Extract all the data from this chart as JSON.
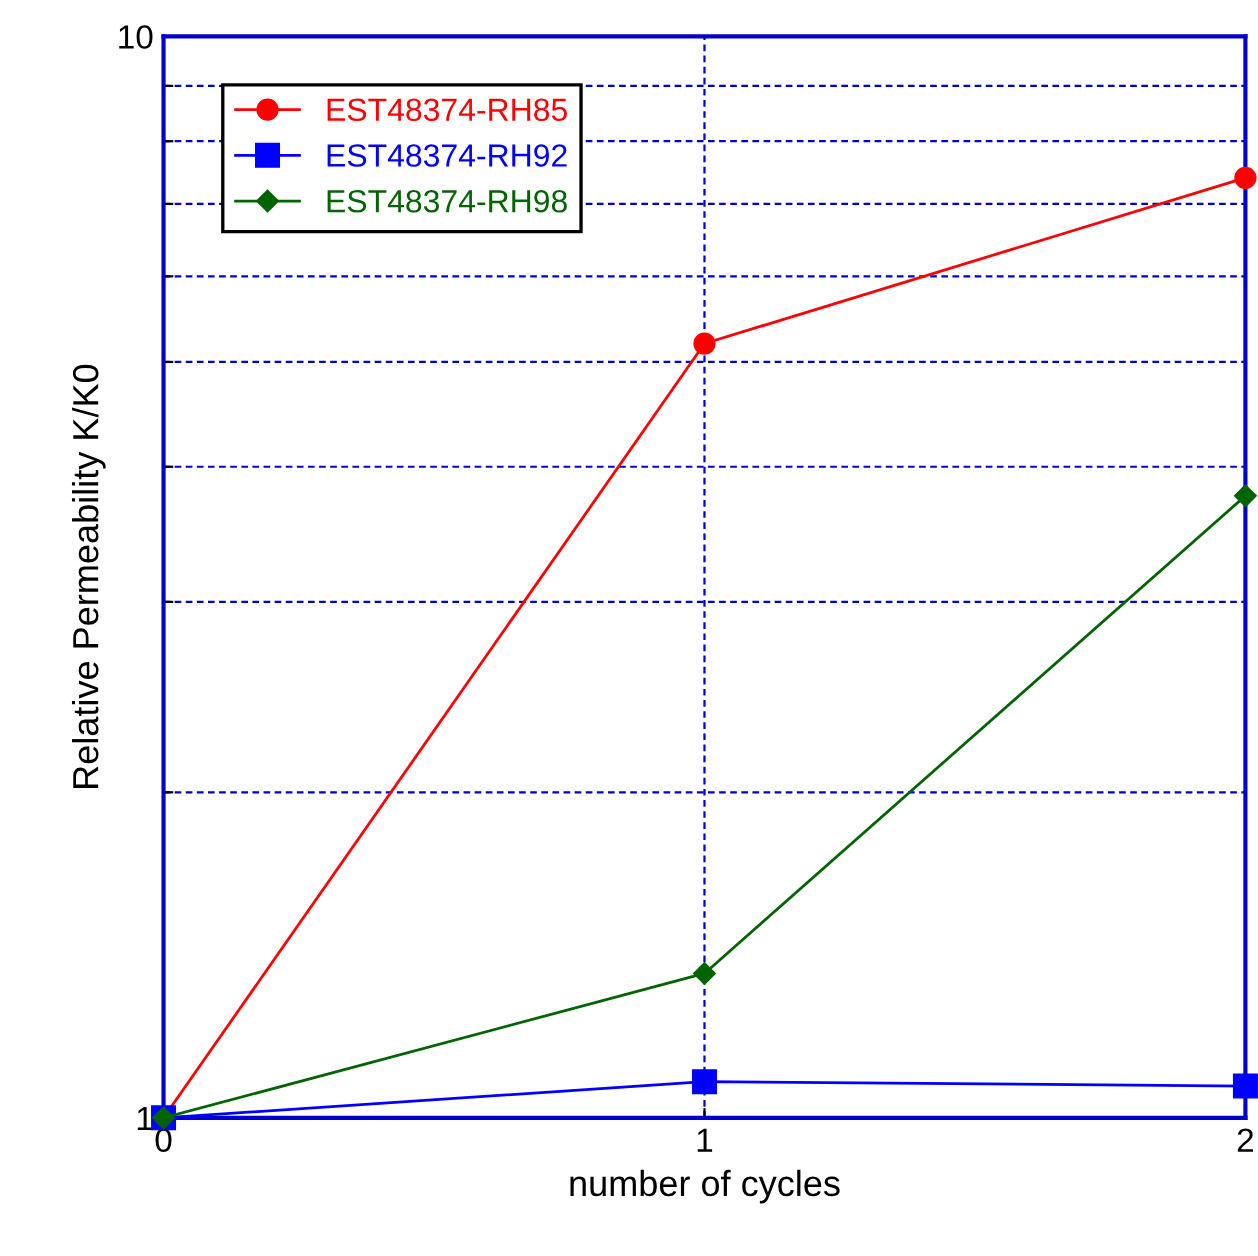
{
  "chart_data": {
    "type": "line",
    "xlabel": "number of cycles",
    "ylabel": "Relative Permeability K/K0",
    "x": [
      0,
      1,
      2
    ],
    "series": [
      {
        "name": "EST48374-RH85",
        "color": "#ff0000",
        "marker": "circle",
        "values": [
          1,
          5.2,
          7.4
        ]
      },
      {
        "name": "EST48374-RH92",
        "color": "#0000ff",
        "marker": "square",
        "values": [
          1,
          1.08,
          1.07
        ]
      },
      {
        "name": "EST48374-RH98",
        "color": "#006400",
        "marker": "diamond",
        "values": [
          1,
          1.36,
          3.76
        ]
      }
    ],
    "log": "y",
    "xlim": [
      0,
      2
    ],
    "ylim": [
      1,
      10
    ],
    "xticks": [
      0,
      1,
      2
    ],
    "yticks": [
      1,
      {
        "value": 2,
        "label": null
      },
      {
        "value": 3,
        "label": null
      },
      {
        "value": 4,
        "label": null
      },
      {
        "value": 5,
        "label": null
      },
      {
        "value": 6,
        "label": null
      },
      {
        "value": 7,
        "label": null
      },
      {
        "value": 8,
        "label": null
      },
      {
        "value": 9,
        "label": null
      },
      10
    ],
    "grid": true,
    "legend": "top left",
    "line_style": "solid"
  }
}
